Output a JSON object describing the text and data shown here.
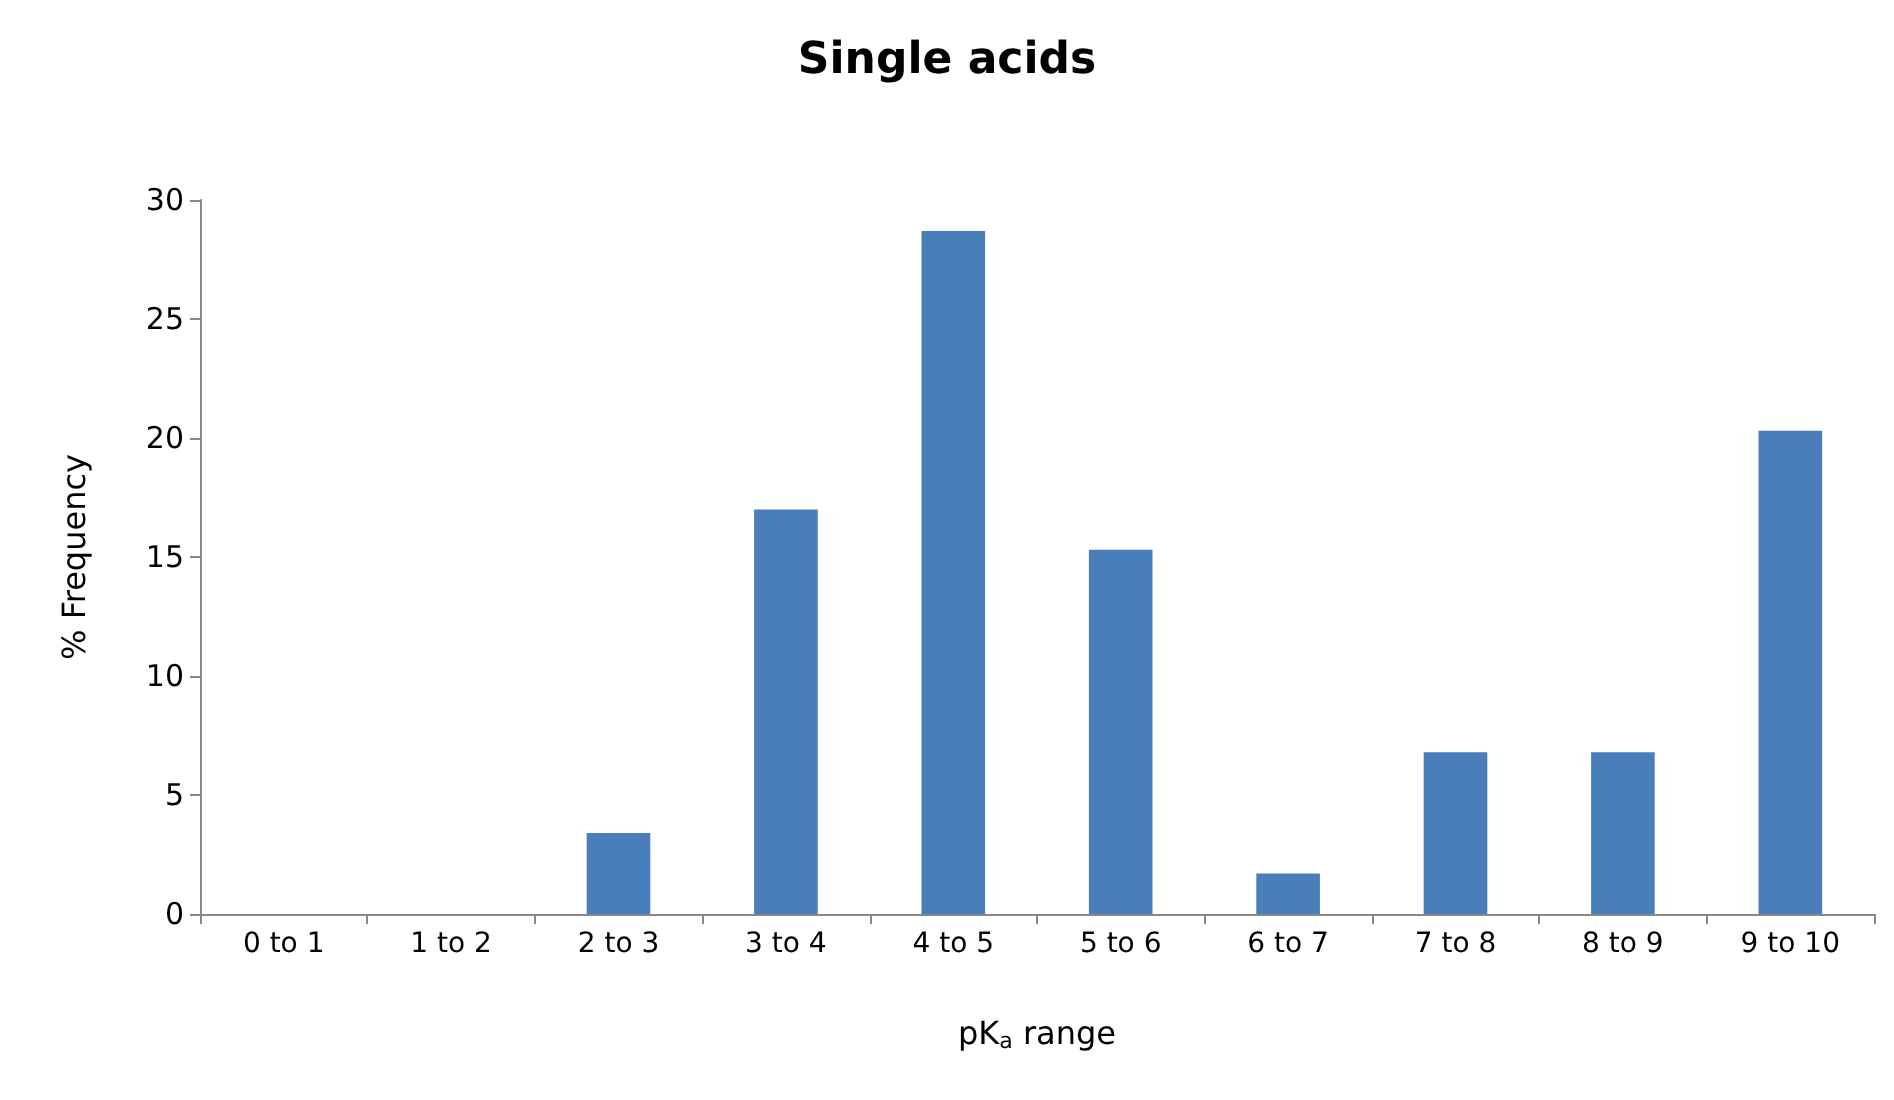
{
  "chart_data": {
    "type": "bar",
    "title": "Single acids",
    "xlabel": "pK$_{a}$ range",
    "ylabel": "% Frequency",
    "categories": [
      "0 to 1",
      "1 to 2",
      "2 to 3",
      "3 to 4",
      "4 to 5",
      "5 to 6",
      "6 to 7",
      "7 to 8",
      "8 to 9",
      "9 to 10"
    ],
    "values": [
      0,
      0,
      3.4,
      17,
      28.7,
      15.3,
      1.7,
      6.8,
      6.8,
      20.3
    ],
    "color": "#4a7ebb",
    "ylim": [
      0,
      30
    ],
    "yticks": [
      0,
      5,
      10,
      15,
      20,
      25,
      30
    ],
    "grid": false
  }
}
